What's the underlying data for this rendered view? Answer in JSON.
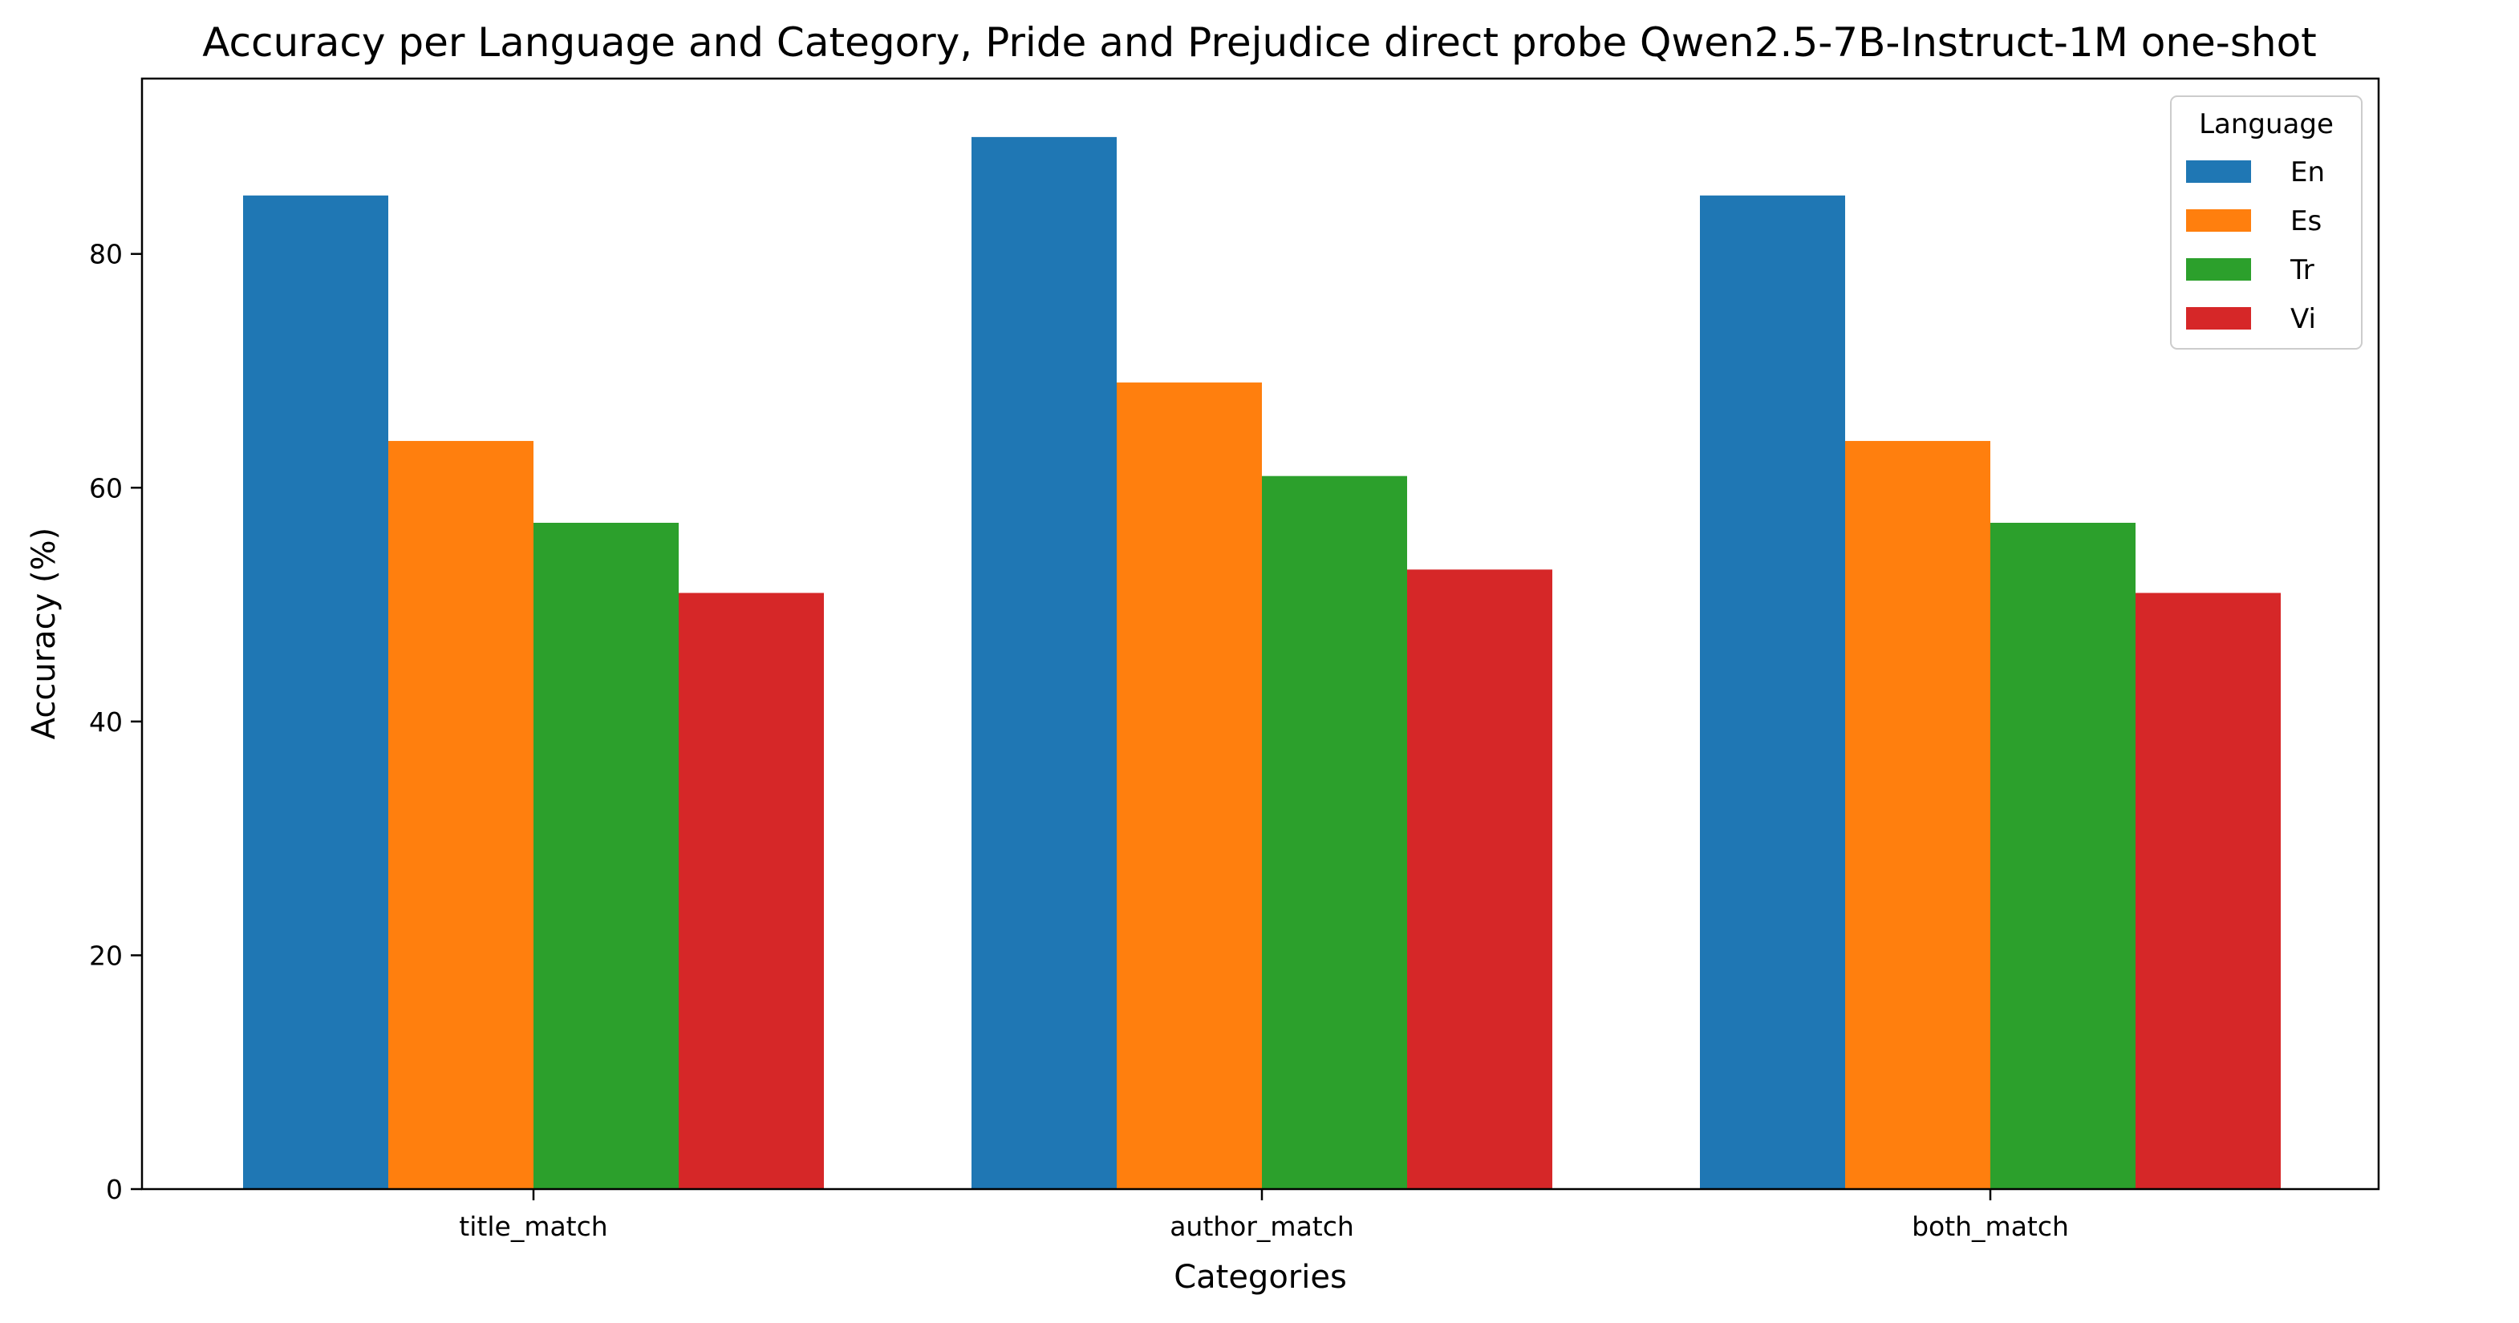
{
  "chart_data": {
    "type": "bar",
    "title": "Accuracy per Language and Category, Pride and Prejudice direct probe Qwen2.5-7B-Instruct-1M one-shot",
    "xlabel": "Categories",
    "ylabel": "Accuracy (%)",
    "categories": [
      "title_match",
      "author_match",
      "both_match"
    ],
    "ylim": [
      0,
      95
    ],
    "yticks": [
      0,
      20,
      40,
      60,
      80
    ],
    "legend_title": "Language",
    "legend_position": "top-right",
    "grid": false,
    "series": [
      {
        "name": "En",
        "color": "#1f77b4",
        "values": [
          85,
          90,
          85
        ]
      },
      {
        "name": "Es",
        "color": "#ff7f0e",
        "values": [
          64,
          69,
          64
        ]
      },
      {
        "name": "Tr",
        "color": "#2ca02c",
        "values": [
          57,
          61,
          57
        ]
      },
      {
        "name": "Vi",
        "color": "#d62728",
        "values": [
          51,
          53,
          51
        ]
      }
    ]
  }
}
